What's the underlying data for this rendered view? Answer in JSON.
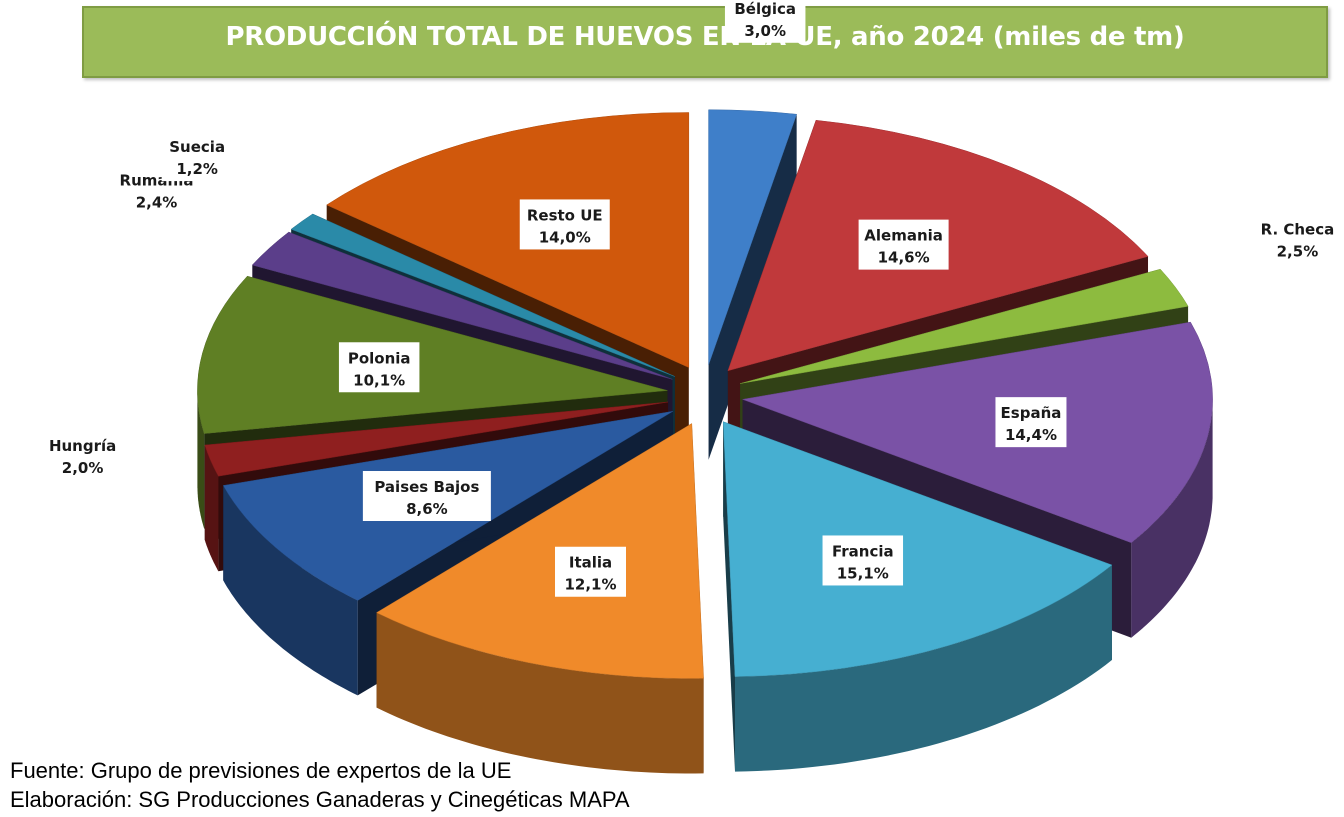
{
  "chart_data": {
    "type": "pie",
    "style": "3d-exploded",
    "title": "PRODUCCIÓN TOTAL DE HUEVOS EN LA UE, año 2024 (miles de tm)",
    "unit": "%",
    "categories": [
      "Bélgica",
      "Alemania",
      "R. Checa",
      "España",
      "Francia",
      "Italia",
      "Paises Bajos",
      "Hungría",
      "Polonia",
      "Rumanía",
      "Suecia",
      "Resto UE"
    ],
    "values": [
      3.0,
      14.6,
      2.5,
      14.4,
      15.1,
      12.1,
      8.6,
      2.0,
      10.1,
      2.4,
      1.2,
      14.0
    ],
    "labels": [
      "3,0%",
      "14,6%",
      "2,5%",
      "14,4%",
      "15,1%",
      "12,1%",
      "8,6%",
      "2,0%",
      "10,1%",
      "2,4%",
      "1,2%",
      "14,0%"
    ],
    "colors": [
      "#3f7fc9",
      "#c0393b",
      "#8dbb3f",
      "#7a52a6",
      "#46afd1",
      "#f08a2a",
      "#2a5aa0",
      "#8f1f1f",
      "#5f7f24",
      "#5b3e8a",
      "#2a8aa8",
      "#d0580c"
    ],
    "start": "top",
    "direction": "clockwise"
  },
  "footer": {
    "source": "Fuente: Grupo de previsiones de expertos de la UE",
    "credit": "Elaboración: SG Producciones Ganaderas y Cinegéticas MAPA"
  }
}
